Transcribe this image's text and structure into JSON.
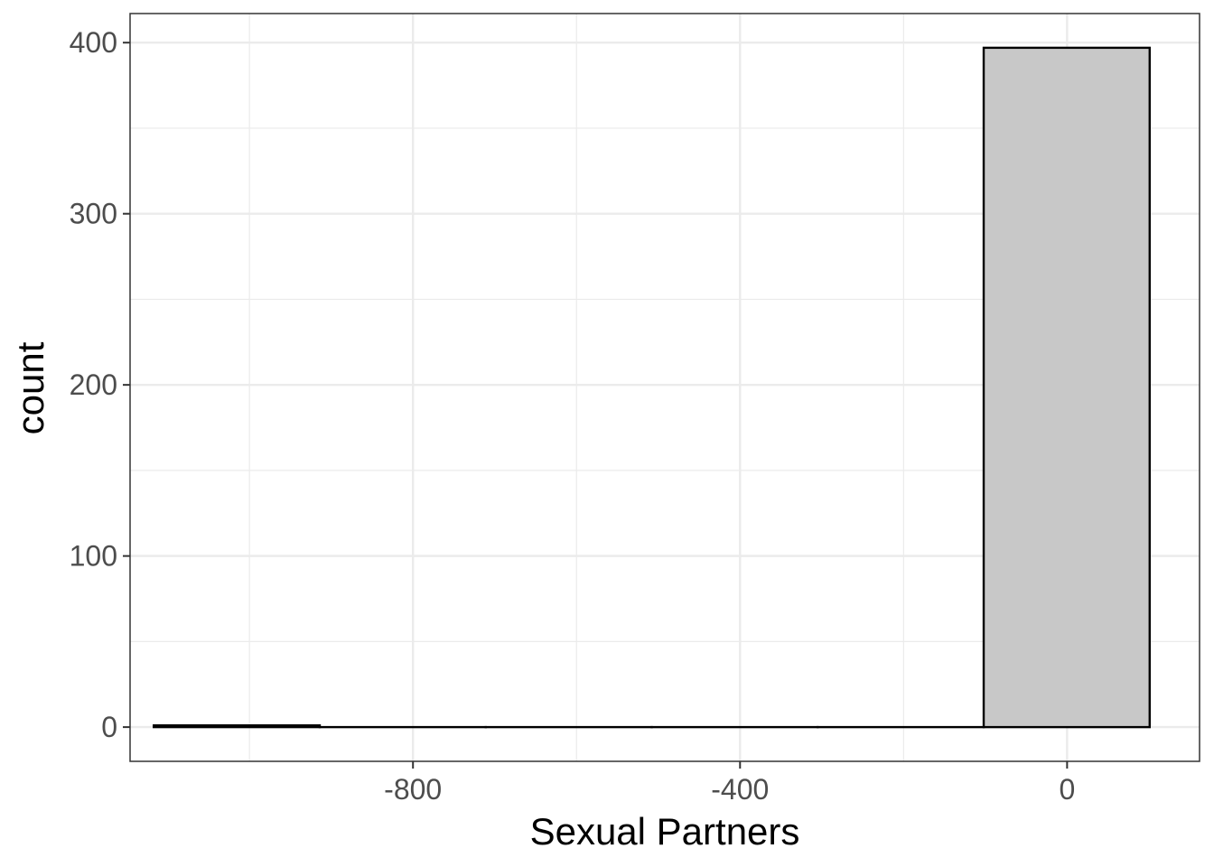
{
  "chart_data": {
    "type": "bar",
    "subtype": "histogram",
    "title": "",
    "xlabel": "Sexual Partners",
    "ylabel": "count",
    "xlim": [
      -1146,
      162
    ],
    "ylim": [
      -20,
      417
    ],
    "x_ticks": [
      -800,
      -400,
      0
    ],
    "x_tick_labels": [
      "-800",
      "-400",
      "0"
    ],
    "x_minor_ticks": [
      -1000,
      -600,
      -200
    ],
    "y_ticks": [
      0,
      100,
      200,
      300,
      400
    ],
    "y_tick_labels": [
      "0",
      "100",
      "200",
      "300",
      "400"
    ],
    "y_minor_ticks": [
      50,
      150,
      250,
      350
    ],
    "bin_width": 203,
    "bins": [
      {
        "x_start": -1117,
        "x_end": -914,
        "count": 1
      },
      {
        "x_start": -914,
        "x_end": -711,
        "count": 0
      },
      {
        "x_start": -711,
        "x_end": -508,
        "count": 0
      },
      {
        "x_start": -508,
        "x_end": -305,
        "count": 0
      },
      {
        "x_start": -305,
        "x_end": -102,
        "count": 0
      },
      {
        "x_start": -102,
        "x_end": 101,
        "count": 397
      }
    ],
    "grid": true,
    "legend": "none",
    "bar_fill": "#c8c8c8",
    "bar_stroke": "#000000",
    "grid_color": "#ebebeb",
    "panel_border": "#333333"
  }
}
